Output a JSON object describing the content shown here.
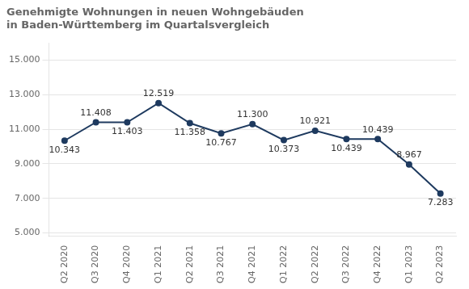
{
  "chart_data": {
    "type": "line",
    "title": "Genehmigte Wohnungen in neuen Wohngebäuden\nin Baden-Württemberg im Quartalsvergleich",
    "categories": [
      "Q2 2020",
      "Q3 2020",
      "Q4 2020",
      "Q1 2021",
      "Q2 2021",
      "Q3 2021",
      "Q4 2021",
      "Q1 2022",
      "Q2 2022",
      "Q3 2022",
      "Q4 2022",
      "Q1 2023",
      "Q2 2023"
    ],
    "values": [
      10343,
      11408,
      11403,
      12519,
      11358,
      10767,
      11300,
      10373,
      10921,
      10439,
      10439,
      8967,
      7283
    ],
    "value_labels": [
      "10.343",
      "11.408",
      "11.403",
      "12.519",
      "11.358",
      "10.767",
      "11.300",
      "10.373",
      "10.921",
      "10.439",
      "10.439",
      "8.967",
      "7.283"
    ],
    "data_labels": true,
    "color": "#1e3a5f",
    "marker": "circle",
    "ylim": [
      4800,
      16000
    ],
    "yticks": [
      {
        "value": 5000,
        "label": "5.000"
      },
      {
        "value": 7000,
        "label": "7.000"
      },
      {
        "value": 9000,
        "label": "9.000"
      },
      {
        "value": 11000,
        "label": "11.000"
      },
      {
        "value": 13000,
        "label": "13.000"
      },
      {
        "value": 15000,
        "label": "15.000"
      }
    ],
    "grid": true
  }
}
